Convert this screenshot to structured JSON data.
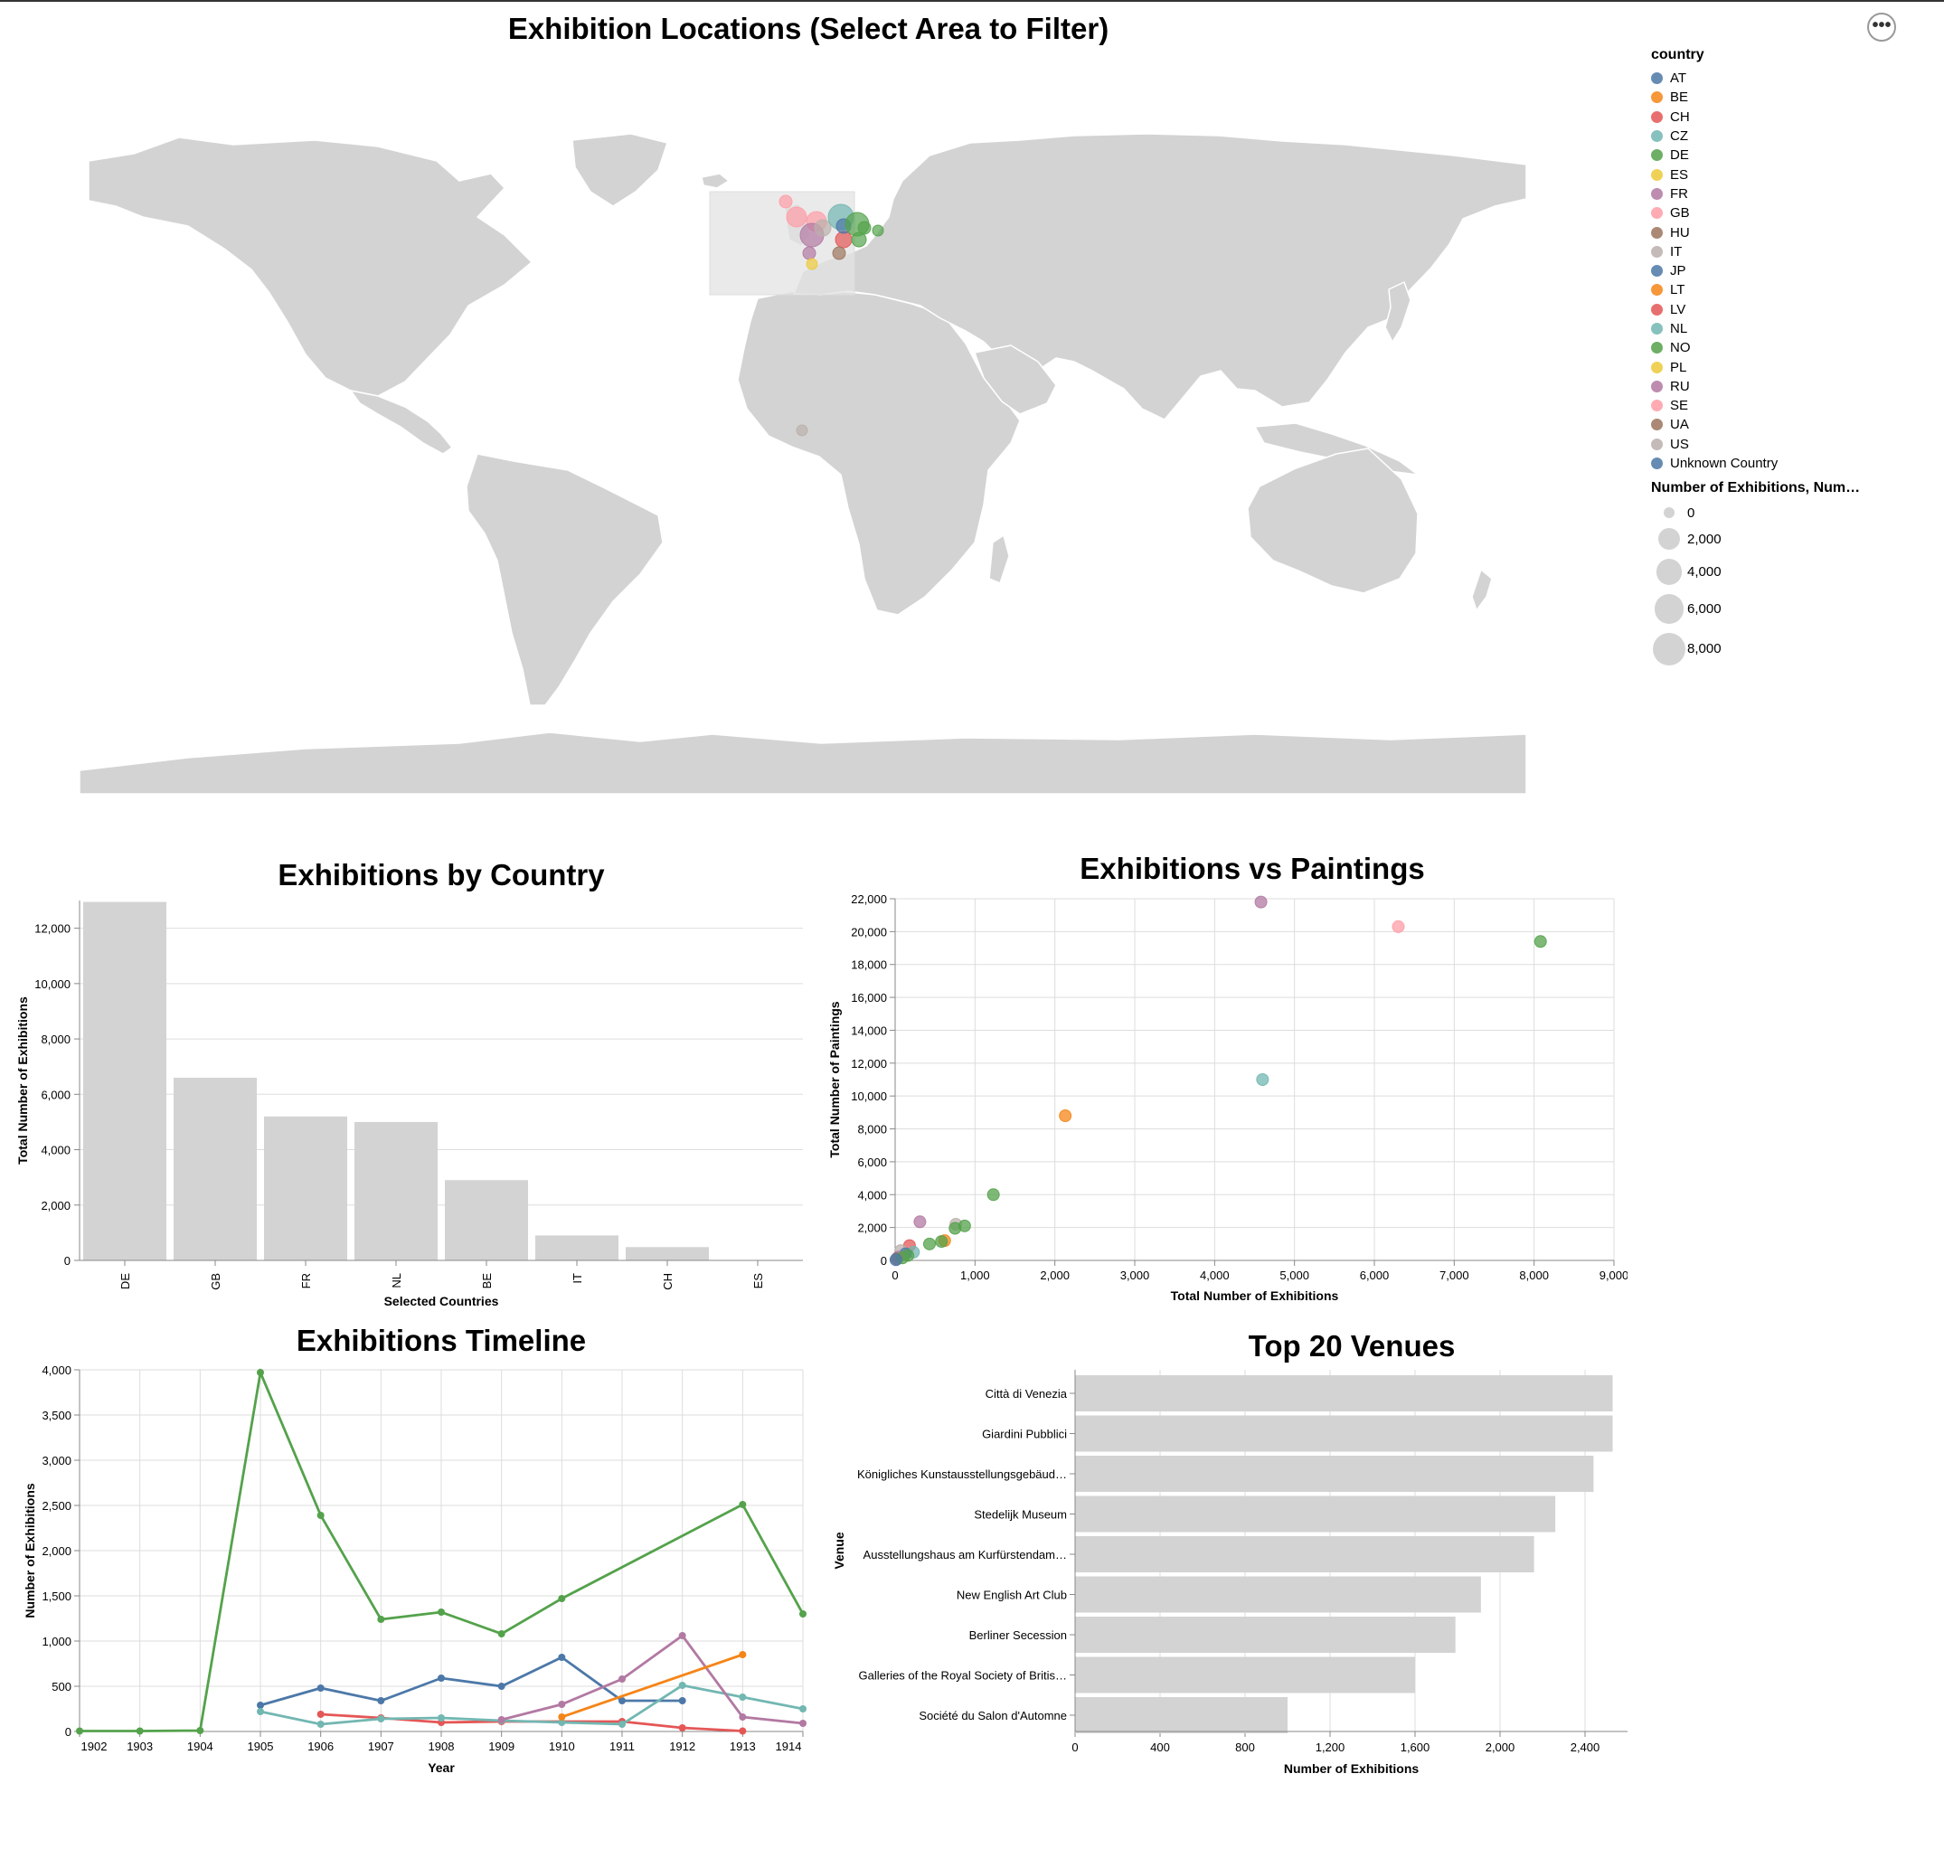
{
  "map": {
    "title": "Exhibition Locations (Select Area to Filter)",
    "menu_label": "•••",
    "legend_color_title": "country",
    "legend_size_title": "Number of Exhibitions, Num…",
    "countries": [
      {
        "code": "AT",
        "color": "#4c78a8"
      },
      {
        "code": "BE",
        "color": "#f58518"
      },
      {
        "code": "CH",
        "color": "#e45756"
      },
      {
        "code": "CZ",
        "color": "#72b7b2"
      },
      {
        "code": "DE",
        "color": "#54a24b"
      },
      {
        "code": "ES",
        "color": "#eeca3b"
      },
      {
        "code": "FR",
        "color": "#b279a2"
      },
      {
        "code": "GB",
        "color": "#ff9da6"
      },
      {
        "code": "HU",
        "color": "#9d755d"
      },
      {
        "code": "IT",
        "color": "#bab0ac"
      },
      {
        "code": "JP",
        "color": "#4c78a8"
      },
      {
        "code": "LT",
        "color": "#f58518"
      },
      {
        "code": "LV",
        "color": "#e45756"
      },
      {
        "code": "NL",
        "color": "#72b7b2"
      },
      {
        "code": "NO",
        "color": "#54a24b"
      },
      {
        "code": "PL",
        "color": "#eeca3b"
      },
      {
        "code": "RU",
        "color": "#b279a2"
      },
      {
        "code": "SE",
        "color": "#ff9da6"
      },
      {
        "code": "UA",
        "color": "#9d755d"
      },
      {
        "code": "US",
        "color": "#bab0ac"
      },
      {
        "code": "Unknown Country",
        "color": "#4c78a8"
      }
    ],
    "size_legend": [
      {
        "label": "0",
        "value": 0
      },
      {
        "label": "2,000",
        "value": 2000
      },
      {
        "label": "4,000",
        "value": 4000
      },
      {
        "label": "6,000",
        "value": 6000
      },
      {
        "label": "8,000",
        "value": 8000
      }
    ],
    "land_color": "#d3d3d3",
    "selection_color": "#e3e3e3"
  },
  "chart_data": [
    {
      "id": "bar_country",
      "type": "bar",
      "title": "Exhibitions by Country",
      "xlabel": "Selected Countries",
      "ylabel": "Total Number of Exhibitions",
      "categories": [
        "DE",
        "GB",
        "FR",
        "NL",
        "BE",
        "IT",
        "CH",
        "ES"
      ],
      "values": [
        12950,
        6600,
        5200,
        5000,
        2900,
        900,
        480,
        15
      ],
      "ylim": [
        0,
        13000
      ],
      "yticks": [
        0,
        2000,
        4000,
        6000,
        8000,
        10000,
        12000
      ],
      "bar_color": "#d3d3d3",
      "grid": true
    },
    {
      "id": "scatter",
      "type": "scatter",
      "title": "Exhibitions vs Paintings",
      "xlabel": "Total Number of Exhibitions",
      "ylabel": "Total Number of Paintings",
      "xlim": [
        0,
        9000
      ],
      "ylim": [
        0,
        22000
      ],
      "xticks": [
        0,
        1000,
        2000,
        3000,
        4000,
        5000,
        6000,
        7000,
        8000,
        9000
      ],
      "yticks": [
        0,
        2000,
        4000,
        6000,
        8000,
        10000,
        12000,
        14000,
        16000,
        18000,
        20000,
        22000
      ],
      "grid": true,
      "points": [
        {
          "x": 4580,
          "y": 21800,
          "color": "#b279a2"
        },
        {
          "x": 6300,
          "y": 20300,
          "color": "#ff9da6"
        },
        {
          "x": 8080,
          "y": 19400,
          "color": "#54a24b"
        },
        {
          "x": 4600,
          "y": 11000,
          "color": "#72b7b2"
        },
        {
          "x": 2130,
          "y": 8800,
          "color": "#f58518"
        },
        {
          "x": 1230,
          "y": 4000,
          "color": "#54a24b"
        },
        {
          "x": 310,
          "y": 2350,
          "color": "#b279a2"
        },
        {
          "x": 760,
          "y": 2200,
          "color": "#bab0ac"
        },
        {
          "x": 870,
          "y": 2100,
          "color": "#54a24b"
        },
        {
          "x": 750,
          "y": 1950,
          "color": "#54a24b"
        },
        {
          "x": 620,
          "y": 1200,
          "color": "#f58518"
        },
        {
          "x": 580,
          "y": 1150,
          "color": "#54a24b"
        },
        {
          "x": 430,
          "y": 1000,
          "color": "#54a24b"
        },
        {
          "x": 180,
          "y": 900,
          "color": "#e45756"
        },
        {
          "x": 70,
          "y": 600,
          "color": "#bab0ac"
        },
        {
          "x": 230,
          "y": 500,
          "color": "#72b7b2"
        },
        {
          "x": 130,
          "y": 400,
          "color": "#4c78a8"
        },
        {
          "x": 160,
          "y": 300,
          "color": "#54a24b"
        },
        {
          "x": 40,
          "y": 200,
          "color": "#b279a2"
        },
        {
          "x": 20,
          "y": 100,
          "color": "#9d755d"
        },
        {
          "x": 90,
          "y": 150,
          "color": "#54a24b"
        },
        {
          "x": 10,
          "y": 40,
          "color": "#4c78a8"
        }
      ]
    },
    {
      "id": "timeline",
      "type": "line",
      "title": "Exhibitions Timeline",
      "xlabel": "Year",
      "ylabel": "Number of Exhibitions",
      "xlim": [
        1902,
        1914
      ],
      "ylim": [
        0,
        4000
      ],
      "xticks": [
        1902,
        1903,
        1904,
        1905,
        1906,
        1907,
        1908,
        1909,
        1910,
        1911,
        1912,
        1913,
        1914
      ],
      "yticks": [
        0,
        500,
        1000,
        1500,
        2000,
        2500,
        3000,
        3500,
        4000
      ],
      "grid": true,
      "series": [
        {
          "color": "#54a24b",
          "points": [
            [
              1902,
              5
            ],
            [
              1903,
              5
            ],
            [
              1904,
              10
            ],
            [
              1905,
              3970
            ],
            [
              1906,
              2390
            ],
            [
              1907,
              1240
            ],
            [
              1908,
              1320
            ],
            [
              1909,
              1080
            ],
            [
              1910,
              1470
            ],
            [
              1913,
              2510
            ],
            [
              1914,
              1300
            ]
          ]
        },
        {
          "color": "#4c78a8",
          "points": [
            [
              1905,
              290
            ],
            [
              1906,
              480
            ],
            [
              1907,
              340
            ],
            [
              1908,
              590
            ],
            [
              1909,
              500
            ],
            [
              1910,
              820
            ],
            [
              1911,
              340
            ],
            [
              1912,
              340
            ]
          ]
        },
        {
          "color": "#e45756",
          "points": [
            [
              1906,
              190
            ],
            [
              1907,
              150
            ],
            [
              1908,
              100
            ],
            [
              1909,
              110
            ],
            [
              1911,
              110
            ],
            [
              1912,
              40
            ],
            [
              1913,
              5
            ]
          ]
        },
        {
          "color": "#72b7b2",
          "points": [
            [
              1905,
              220
            ],
            [
              1906,
              80
            ],
            [
              1907,
              140
            ],
            [
              1908,
              150
            ],
            [
              1909,
              120
            ],
            [
              1910,
              100
            ],
            [
              1911,
              80
            ],
            [
              1912,
              510
            ],
            [
              1913,
              380
            ],
            [
              1914,
              250
            ]
          ]
        },
        {
          "color": "#b279a2",
          "points": [
            [
              1909,
              130
            ],
            [
              1910,
              300
            ],
            [
              1911,
              580
            ],
            [
              1912,
              1060
            ],
            [
              1913,
              160
            ],
            [
              1914,
              90
            ]
          ]
        },
        {
          "color": "#f58518",
          "points": [
            [
              1910,
              160
            ],
            [
              1913,
              850
            ]
          ]
        }
      ]
    },
    {
      "id": "venues",
      "type": "bar",
      "orientation": "horizontal",
      "title": "Top 20 Venues",
      "xlabel": "Number of Exhibitions",
      "ylabel": "Venue",
      "xlim": [
        0,
        2600
      ],
      "xticks": [
        0,
        400,
        800,
        1200,
        1600,
        2000,
        2400
      ],
      "tick_labels": [
        "0",
        "400",
        "800",
        "1,200",
        "1,600",
        "2,000",
        "2,400"
      ],
      "categories": [
        "Città di Venezia",
        "Giardini Pubblici",
        "Königliches Kunstausstellungsgebäud…",
        "Stedelijk Museum",
        "Ausstellungshaus am Kurfürstendam…",
        "New English Art Club",
        "Berliner Secession",
        "Galleries of the Royal Society of Britis…",
        "Société du Salon d'Automne"
      ],
      "values": [
        2530,
        2530,
        2440,
        2260,
        2160,
        1910,
        1790,
        1600,
        1000
      ],
      "bar_color": "#d3d3d3",
      "grid": true
    }
  ]
}
